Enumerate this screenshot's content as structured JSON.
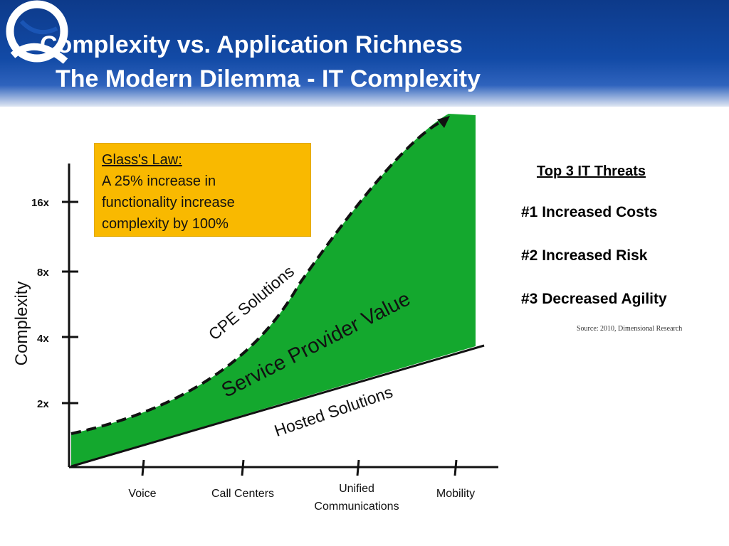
{
  "header": {
    "title_line1": "Complexity vs. Application Richness",
    "title_line2": "The Modern Dilemma - IT Complexity"
  },
  "colors": {
    "header_blue": "#124aa6",
    "fill_green": "#14a82e",
    "callout_yellow": "#f9b900"
  },
  "glass_law": {
    "title": "Glass's Law:",
    "line1": "A 25% increase in",
    "line2": "functionality increase",
    "line3": "complexity by 100%"
  },
  "diagram": {
    "y_axis_label": "Complexity",
    "y_ticks": [
      "16x",
      "8x",
      "4x",
      "2x"
    ],
    "x_categories": [
      "Voice",
      "Call Centers",
      "Unified",
      "Communications",
      "Mobility"
    ],
    "curve_label": "CPE Solutions",
    "area_label": "Service Provider Value",
    "line_label": "Hosted Solutions"
  },
  "threats": {
    "heading": "Top 3 IT Threats",
    "items": [
      "#1 Increased Costs",
      "#2 Increased Risk",
      "#3 Decreased Agility"
    ],
    "source": "Source: 2010, Dimensional Research"
  }
}
